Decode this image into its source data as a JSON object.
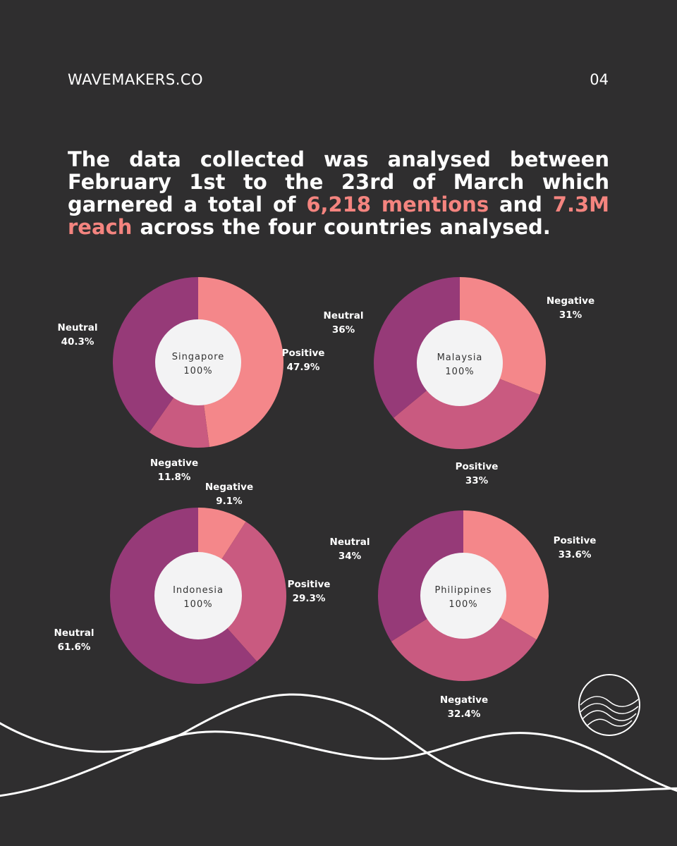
{
  "header": {
    "brand": "WAVEMAKERS.CO",
    "page_number": "04"
  },
  "headline": {
    "part1": "The data collected was analysed between February 1st to the 23rd of March which garnered a total of ",
    "mentions": "6,218 mentions",
    "part2": " and ",
    "reach": "7.3M reach",
    "part3": " across the four countries analysed."
  },
  "colors": {
    "background": "#2f2e2f",
    "accent": "#f4847f",
    "positive_salmon": "#f4878a",
    "mid_pink": "#c95a80",
    "neutral_purple": "#963a78",
    "center": "#f3f3f4"
  },
  "chart_data": [
    {
      "type": "pie",
      "center_label": "Singapore",
      "center_value": "100%",
      "slices": [
        {
          "name": "Positive",
          "value": 47.9,
          "label": "47.9%",
          "color": "#f4878a"
        },
        {
          "name": "Negative",
          "value": 11.8,
          "label": "11.8%",
          "color": "#c95a80"
        },
        {
          "name": "Neutral",
          "value": 40.3,
          "label": "40.3%",
          "color": "#963a78"
        }
      ]
    },
    {
      "type": "pie",
      "center_label": "Malaysia",
      "center_value": "100%",
      "slices": [
        {
          "name": "Negative",
          "value": 31,
          "label": "31%",
          "color": "#f4878a"
        },
        {
          "name": "Positive",
          "value": 33,
          "label": "33%",
          "color": "#c95a80"
        },
        {
          "name": "Neutral",
          "value": 36,
          "label": "36%",
          "color": "#963a78"
        }
      ]
    },
    {
      "type": "pie",
      "center_label": "Indonesia",
      "center_value": "100%",
      "slices": [
        {
          "name": "Negative",
          "value": 9.1,
          "label": "9.1%",
          "color": "#f4878a"
        },
        {
          "name": "Positive",
          "value": 29.3,
          "label": "29.3%",
          "color": "#c95a80"
        },
        {
          "name": "Neutral",
          "value": 61.6,
          "label": "61.6%",
          "color": "#963a78"
        }
      ]
    },
    {
      "type": "pie",
      "center_label": "Philippines",
      "center_value": "100%",
      "slices": [
        {
          "name": "Positive",
          "value": 33.6,
          "label": "33.6%",
          "color": "#f4878a"
        },
        {
          "name": "Negative",
          "value": 32.4,
          "label": "32.4%",
          "color": "#c95a80"
        },
        {
          "name": "Neutral",
          "value": 34,
          "label": "34%",
          "color": "#963a78"
        }
      ]
    }
  ]
}
